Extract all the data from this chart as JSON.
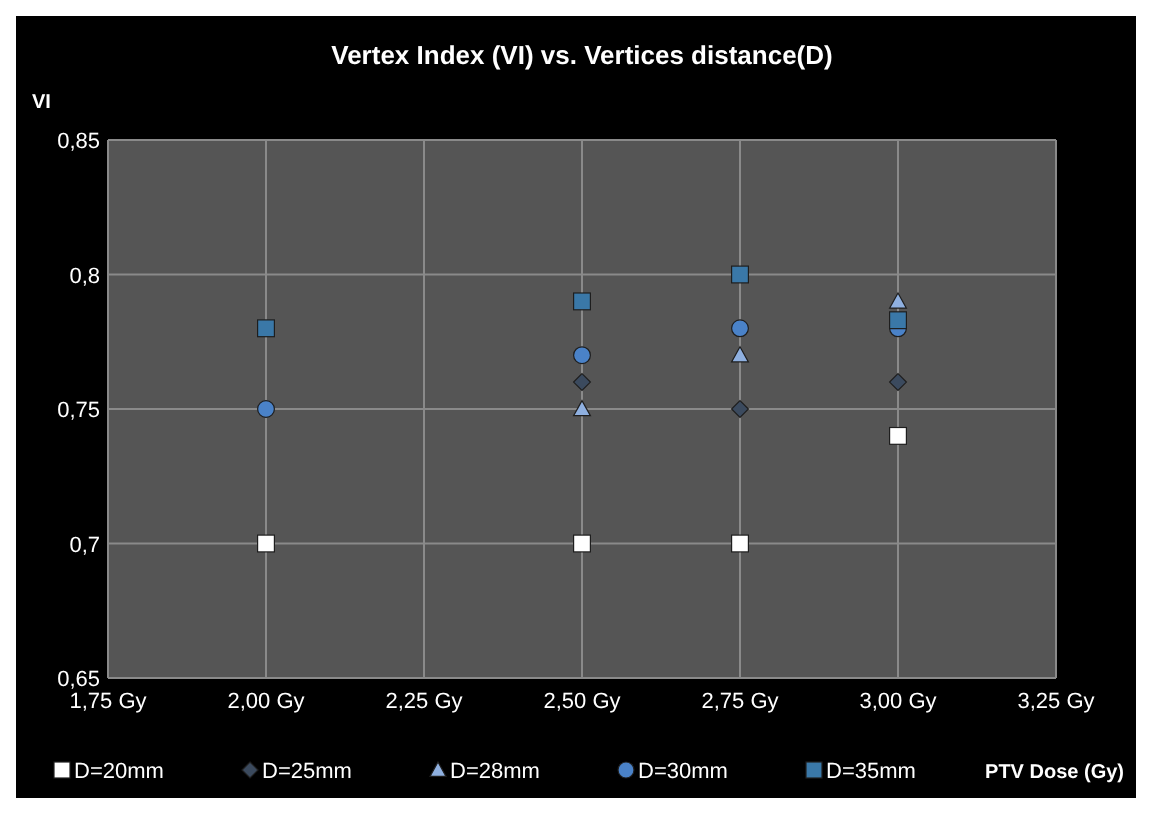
{
  "chart_data": {
    "type": "scatter",
    "title": "Vertex Index (VI) vs. Vertices distance(D)",
    "xlabel": "PTV Dose (Gy)",
    "ylabel": "VI",
    "x": [
      2.0,
      2.5,
      2.75,
      3.0
    ],
    "series": [
      {
        "name": "D=20mm",
        "color": "#ffffff",
        "marker": "square",
        "values": [
          0.7,
          0.7,
          0.7,
          0.74
        ]
      },
      {
        "name": "D=25mm",
        "color": "#3b4a5e",
        "marker": "diamond",
        "values": [
          null,
          0.76,
          0.75,
          0.76
        ]
      },
      {
        "name": "D=28mm",
        "color": "#8fb0e0",
        "marker": "triangle",
        "values": [
          null,
          0.75,
          0.77,
          0.79
        ]
      },
      {
        "name": "D=30mm",
        "color": "#4a82c8",
        "marker": "circle",
        "values": [
          0.75,
          0.77,
          0.78,
          0.78
        ]
      },
      {
        "name": "D=35mm",
        "color": "#3a78a8",
        "marker": "square",
        "values": [
          0.78,
          0.79,
          0.8,
          0.783
        ]
      }
    ],
    "xlim": [
      1.75,
      3.25
    ],
    "ylim": [
      0.65,
      0.85
    ],
    "xticks": [
      {
        "value": 1.75,
        "label": "1,75 Gy"
      },
      {
        "value": 2.0,
        "label": "2,00 Gy"
      },
      {
        "value": 2.25,
        "label": "2,25 Gy"
      },
      {
        "value": 2.5,
        "label": "2,50 Gy"
      },
      {
        "value": 2.75,
        "label": "2,75 Gy"
      },
      {
        "value": 3.0,
        "label": "3,00 Gy"
      },
      {
        "value": 3.25,
        "label": "3,25 Gy"
      }
    ],
    "yticks": [
      {
        "value": 0.65,
        "label": "0,65"
      },
      {
        "value": 0.7,
        "label": "0,7"
      },
      {
        "value": 0.75,
        "label": "0,75"
      },
      {
        "value": 0.8,
        "label": "0,8"
      },
      {
        "value": 0.85,
        "label": "0,85"
      }
    ],
    "grid": true,
    "legend": "bottom"
  }
}
